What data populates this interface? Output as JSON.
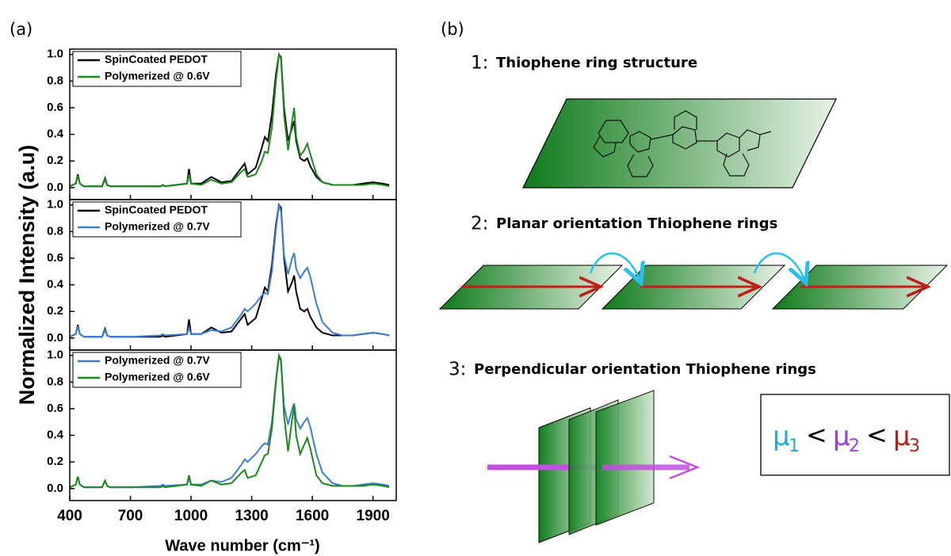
{
  "panel_labels": [
    "(a)",
    "(b)"
  ],
  "chart_data": [
    {
      "type": "line",
      "x": [
        400,
        430,
        440,
        450,
        470,
        560,
        575,
        585,
        600,
        700,
        850,
        860,
        870,
        980,
        990,
        1000,
        1050,
        1100,
        1150,
        1200,
        1250,
        1265,
        1280,
        1320,
        1350,
        1365,
        1380,
        1400,
        1420,
        1435,
        1445,
        1460,
        1480,
        1500,
        1510,
        1520,
        1540,
        1560,
        1575,
        1590,
        1620,
        1650,
        1700,
        1750,
        1800,
        1850,
        1900,
        1950,
        1980
      ],
      "series": [
        {
          "name": "SpinCoated PEDOT",
          "color": "#000000",
          "values": [
            0.01,
            0.03,
            0.1,
            0.03,
            0.01,
            0.01,
            0.07,
            0.02,
            0.01,
            0.01,
            0.01,
            0.02,
            0.01,
            0.03,
            0.14,
            0.03,
            0.03,
            0.08,
            0.04,
            0.05,
            0.15,
            0.18,
            0.1,
            0.15,
            0.3,
            0.38,
            0.35,
            0.55,
            0.85,
            1.0,
            0.98,
            0.6,
            0.35,
            0.45,
            0.5,
            0.35,
            0.22,
            0.2,
            0.22,
            0.16,
            0.08,
            0.04,
            0.02,
            0.02,
            0.02,
            0.03,
            0.04,
            0.03,
            0.02
          ]
        },
        {
          "name": "Polymerized @ 0.6V",
          "color": "#1a8a1a",
          "values": [
            0.01,
            0.03,
            0.09,
            0.03,
            0.01,
            0.01,
            0.06,
            0.02,
            0.01,
            0.01,
            0.01,
            0.02,
            0.01,
            0.03,
            0.1,
            0.03,
            0.02,
            0.06,
            0.03,
            0.04,
            0.12,
            0.14,
            0.08,
            0.1,
            0.2,
            0.27,
            0.26,
            0.45,
            0.8,
            1.0,
            0.97,
            0.55,
            0.28,
            0.5,
            0.6,
            0.38,
            0.24,
            0.28,
            0.33,
            0.25,
            0.1,
            0.04,
            0.02,
            0.02,
            0.02,
            0.02,
            0.03,
            0.02,
            0.01
          ]
        }
      ],
      "ylim": [
        -0.09,
        1.04
      ],
      "yticks": [
        {
          "value": 0,
          "label": "0.0"
        },
        0.2,
        0.4,
        0.6,
        0.8,
        {
          "value": 1,
          "label": "1.0"
        }
      ],
      "legend": "upper left"
    },
    {
      "type": "line",
      "y_label": "Normalized Intensity (a.u)",
      "x": [
        400,
        430,
        440,
        450,
        470,
        560,
        575,
        585,
        600,
        700,
        850,
        860,
        870,
        980,
        990,
        1000,
        1050,
        1100,
        1150,
        1200,
        1250,
        1265,
        1280,
        1320,
        1350,
        1365,
        1380,
        1400,
        1420,
        1435,
        1445,
        1460,
        1480,
        1500,
        1510,
        1520,
        1540,
        1560,
        1575,
        1590,
        1620,
        1650,
        1700,
        1750,
        1800,
        1850,
        1900,
        1950,
        1980
      ],
      "series": [
        {
          "name": "SpinCoated PEDOT",
          "color": "#000000",
          "values": [
            0.01,
            0.03,
            0.1,
            0.03,
            0.01,
            0.01,
            0.07,
            0.02,
            0.01,
            0.01,
            0.01,
            0.02,
            0.01,
            0.03,
            0.14,
            0.03,
            0.03,
            0.08,
            0.04,
            0.05,
            0.15,
            0.18,
            0.1,
            0.15,
            0.3,
            0.38,
            0.35,
            0.55,
            0.85,
            1.0,
            0.98,
            0.6,
            0.35,
            0.42,
            0.47,
            0.35,
            0.22,
            0.2,
            0.22,
            0.16,
            0.08,
            0.04,
            0.02,
            0.02,
            0.02,
            0.03,
            0.04,
            0.03,
            0.02
          ]
        },
        {
          "name": "Polymerized @ 0.7V",
          "color": "#3a7fd5",
          "values": [
            0.01,
            0.03,
            0.09,
            0.03,
            0.01,
            0.01,
            0.06,
            0.02,
            0.01,
            0.01,
            0.02,
            0.03,
            0.02,
            0.03,
            0.08,
            0.03,
            0.03,
            0.06,
            0.05,
            0.08,
            0.18,
            0.22,
            0.2,
            0.26,
            0.32,
            0.34,
            0.33,
            0.5,
            0.82,
            1.0,
            0.95,
            0.62,
            0.48,
            0.6,
            0.64,
            0.52,
            0.45,
            0.5,
            0.53,
            0.46,
            0.26,
            0.12,
            0.04,
            0.02,
            0.02,
            0.03,
            0.04,
            0.03,
            0.02
          ]
        }
      ],
      "ylim": [
        -0.09,
        1.04
      ],
      "yticks": [
        {
          "value": 0,
          "label": "0.0"
        },
        0.2,
        0.4,
        0.6,
        0.8,
        {
          "value": 1,
          "label": "1.0"
        }
      ],
      "legend": "upper left"
    },
    {
      "type": "line",
      "x_label": "Wave number (cm⁻¹)",
      "x": [
        400,
        430,
        440,
        450,
        470,
        560,
        575,
        585,
        600,
        700,
        850,
        860,
        870,
        980,
        990,
        1000,
        1050,
        1100,
        1150,
        1200,
        1250,
        1265,
        1280,
        1320,
        1350,
        1365,
        1380,
        1400,
        1420,
        1435,
        1445,
        1460,
        1480,
        1500,
        1510,
        1520,
        1540,
        1560,
        1575,
        1590,
        1620,
        1650,
        1700,
        1750,
        1800,
        1850,
        1900,
        1950,
        1980
      ],
      "series": [
        {
          "name": "Polymerized @ 0.7V",
          "color": "#3a7fd5",
          "values": [
            0.01,
            0.03,
            0.09,
            0.03,
            0.01,
            0.01,
            0.06,
            0.02,
            0.01,
            0.01,
            0.02,
            0.03,
            0.02,
            0.03,
            0.08,
            0.03,
            0.03,
            0.06,
            0.05,
            0.08,
            0.18,
            0.22,
            0.2,
            0.26,
            0.32,
            0.34,
            0.33,
            0.5,
            0.82,
            1.0,
            0.95,
            0.62,
            0.48,
            0.6,
            0.64,
            0.52,
            0.45,
            0.5,
            0.53,
            0.46,
            0.26,
            0.12,
            0.04,
            0.02,
            0.02,
            0.03,
            0.04,
            0.03,
            0.02
          ]
        },
        {
          "name": "Polymerized @ 0.6V",
          "color": "#1a8a1a",
          "values": [
            0.01,
            0.03,
            0.09,
            0.03,
            0.01,
            0.01,
            0.06,
            0.02,
            0.01,
            0.01,
            0.01,
            0.02,
            0.01,
            0.03,
            0.1,
            0.03,
            0.02,
            0.06,
            0.03,
            0.04,
            0.12,
            0.14,
            0.08,
            0.1,
            0.2,
            0.25,
            0.26,
            0.45,
            0.8,
            1.0,
            0.97,
            0.55,
            0.28,
            0.52,
            0.62,
            0.4,
            0.26,
            0.33,
            0.38,
            0.3,
            0.1,
            0.04,
            0.02,
            0.02,
            0.02,
            0.02,
            0.03,
            0.02,
            0.01
          ]
        }
      ],
      "xlim": [
        400,
        2015
      ],
      "xticks": [
        400,
        700,
        1000,
        1300,
        1600,
        1900
      ],
      "ylim": [
        -0.09,
        1.04
      ],
      "yticks": [
        {
          "value": 0,
          "label": "0.0"
        },
        0.2,
        0.4,
        0.6,
        0.8,
        {
          "value": 1,
          "label": "1.0"
        }
      ],
      "legend": "upper left"
    }
  ],
  "diagram": {
    "sections": [
      {
        "number": "1:",
        "title": "Thiophene ring structure"
      },
      {
        "number": "2:",
        "title": "Planar orientation Thiophene rings"
      },
      {
        "number": "3:",
        "title": "Perpendicular orientation Thiophene rings"
      }
    ],
    "mobility": {
      "relation": "<",
      "terms": [
        {
          "symbol": "μ",
          "subscript": "1",
          "color": "#29a9d6"
        },
        {
          "symbol": "μ",
          "subscript": "2",
          "color": "#9b3fd0"
        },
        {
          "symbol": "μ",
          "subscript": "3",
          "color": "#b0201a"
        }
      ]
    }
  }
}
